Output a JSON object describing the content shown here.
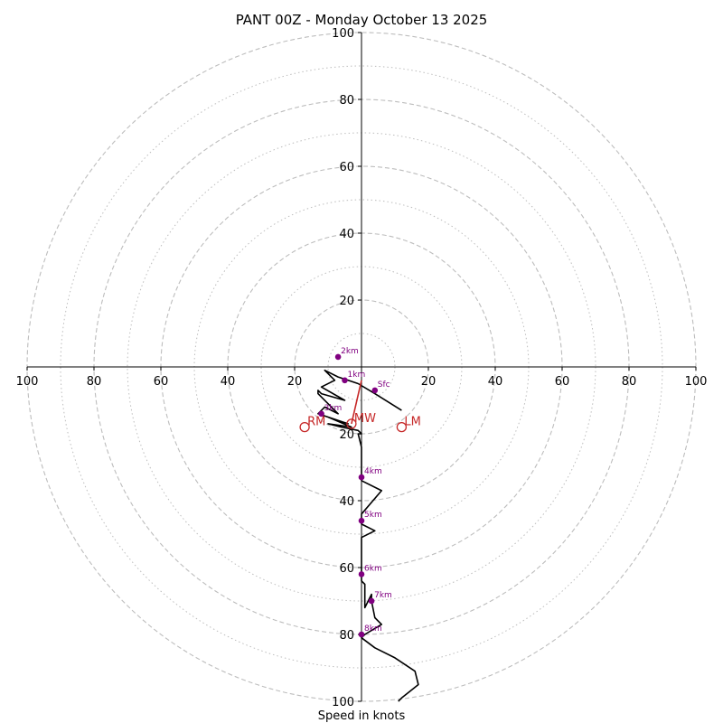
{
  "chart_data": {
    "type": "hodograph",
    "title": "PANT 00Z - Monday October 13 2025",
    "xlabel": "Speed in knots",
    "axis_range": [
      -100,
      100
    ],
    "ring_radii_major": [
      20,
      40,
      60,
      80,
      100
    ],
    "ring_radii_minor": [
      10,
      30,
      50,
      70,
      90
    ],
    "x_tick_labels": [
      {
        "value": -100,
        "label": "100"
      },
      {
        "value": -80,
        "label": "80"
      },
      {
        "value": -60,
        "label": "60"
      },
      {
        "value": -40,
        "label": "40"
      },
      {
        "value": -20,
        "label": "20"
      },
      {
        "value": 20,
        "label": "20"
      },
      {
        "value": 40,
        "label": "40"
      },
      {
        "value": 60,
        "label": "60"
      },
      {
        "value": 80,
        "label": "80"
      },
      {
        "value": 100,
        "label": "100"
      }
    ],
    "y_tick_labels": [
      {
        "value": 100,
        "label": "100"
      },
      {
        "value": 80,
        "label": "80"
      },
      {
        "value": 60,
        "label": "60"
      },
      {
        "value": 40,
        "label": "40"
      },
      {
        "value": 20,
        "label": "20"
      },
      {
        "value": -20,
        "label": "20"
      },
      {
        "value": -40,
        "label": "40"
      },
      {
        "value": -60,
        "label": "60"
      },
      {
        "value": -80,
        "label": "80"
      },
      {
        "value": -100,
        "label": "100"
      }
    ],
    "hodograph_trace": [
      [
        12,
        -13
      ],
      [
        4,
        -8
      ],
      [
        -1,
        -5
      ],
      [
        -7,
        -3
      ],
      [
        -11,
        -1
      ],
      [
        -8,
        -4
      ],
      [
        -12,
        -6
      ],
      [
        -5,
        -10
      ],
      [
        -12,
        -8
      ],
      [
        -13,
        -7
      ],
      [
        -13,
        -8
      ],
      [
        -7,
        -14
      ],
      [
        -11,
        -12
      ],
      [
        -13,
        -14
      ],
      [
        -4,
        -17
      ],
      [
        -10,
        -15
      ],
      [
        -3,
        -18
      ],
      [
        -10,
        -17
      ],
      [
        -6,
        -18
      ],
      [
        -1,
        -19
      ],
      [
        0,
        -20
      ],
      [
        -1,
        -20
      ],
      [
        0,
        -24
      ],
      [
        0,
        -29
      ],
      [
        0,
        -33
      ],
      [
        0,
        -34
      ],
      [
        6,
        -37
      ],
      [
        0,
        -44
      ],
      [
        0,
        -46
      ],
      [
        0,
        -47
      ],
      [
        4,
        -49
      ],
      [
        0,
        -51
      ],
      [
        0,
        -55
      ],
      [
        0,
        -60
      ],
      [
        0,
        -62
      ],
      [
        0,
        -64
      ],
      [
        1,
        -65
      ],
      [
        1,
        -70
      ],
      [
        1,
        -72
      ],
      [
        3,
        -68
      ],
      [
        3,
        -70
      ],
      [
        4,
        -75
      ],
      [
        6,
        -77
      ],
      [
        1,
        -80
      ],
      [
        0,
        -81
      ],
      [
        4,
        -84
      ],
      [
        10,
        -87
      ],
      [
        16,
        -91
      ],
      [
        17,
        -95
      ],
      [
        12,
        -99
      ],
      [
        11,
        -100
      ]
    ],
    "height_markers": [
      {
        "label": "Sfc",
        "u": 4,
        "v": -7
      },
      {
        "label": "1km",
        "u": -5,
        "v": -4
      },
      {
        "label": "2km",
        "u": -7,
        "v": 3
      },
      {
        "label": "3km",
        "u": -12,
        "v": -14
      },
      {
        "label": "4km",
        "u": 0,
        "v": -33
      },
      {
        "label": "5km",
        "u": 0,
        "v": -46
      },
      {
        "label": "6km",
        "u": 0,
        "v": -62
      },
      {
        "label": "7km",
        "u": 3,
        "v": -70
      },
      {
        "label": "8km",
        "u": 0,
        "v": -80
      }
    ],
    "bunkers_red_path": [
      [
        0,
        -4
      ],
      [
        -3,
        -17
      ]
    ],
    "storm_motion": [
      {
        "label": "RM",
        "u": -17,
        "v": -18
      },
      {
        "label": "MW",
        "u": -3,
        "v": -17
      },
      {
        "label": "LM",
        "u": 12,
        "v": -18
      }
    ],
    "colors": {
      "trace": "#000000",
      "marker": "#800080",
      "storm_motion": "#c62828",
      "ring": "#bdbdbd",
      "axis": "#000000"
    }
  }
}
